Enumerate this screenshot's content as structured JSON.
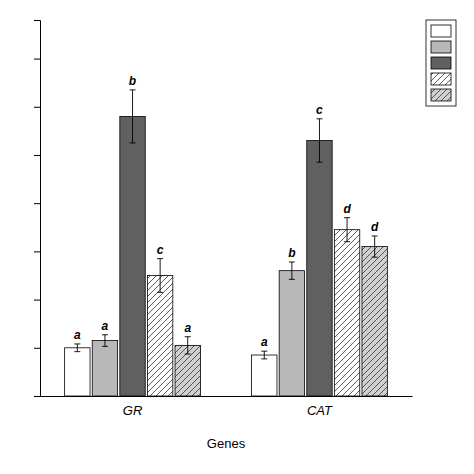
{
  "chart_data": {
    "type": "bar",
    "xlabel": "Genes",
    "categories": [
      "GR",
      "CAT"
    ],
    "series": [
      {
        "color": "white",
        "values": [
          1.0,
          0.85
        ],
        "errors": [
          0.08,
          0.08
        ],
        "annotations": [
          "a",
          "a"
        ]
      },
      {
        "color": "#b8b8b8",
        "values": [
          1.15,
          2.6
        ],
        "errors": [
          0.12,
          0.18
        ],
        "annotations": [
          "a",
          "b"
        ]
      },
      {
        "color": "#606060",
        "values": [
          5.8,
          5.3
        ],
        "errors": [
          0.55,
          0.45
        ],
        "annotations": [
          "b",
          "c"
        ]
      },
      {
        "color": "white",
        "values": [
          2.5,
          3.45
        ],
        "errors": [
          0.35,
          0.25
        ],
        "annotations": [
          "c",
          "d"
        ]
      },
      {
        "color": "#d0d0d0",
        "values": [
          1.05,
          3.1
        ],
        "errors": [
          0.18,
          0.22
        ],
        "annotations": [
          "a",
          "d"
        ]
      }
    ],
    "ylim": [
      0,
      7.8
    ],
    "yticks": [
      0,
      1,
      2,
      3,
      4,
      5,
      6,
      7
    ],
    "grid": false,
    "legend": "upper right",
    "tick_labels": "x"
  }
}
